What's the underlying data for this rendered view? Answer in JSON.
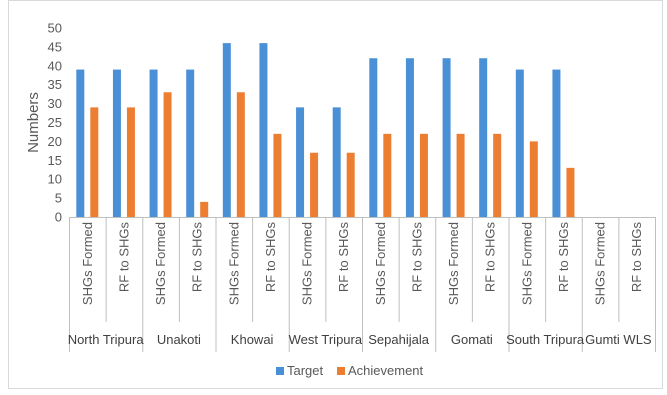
{
  "chart_data": {
    "type": "bar",
    "ylabel": "Numbers",
    "xlabel": "",
    "ylim": [
      0,
      50
    ],
    "ytick_step": 5,
    "grid": false,
    "legend_position": "bottom",
    "groups": [
      "North Tripura",
      "Unakoti",
      "Khowai",
      "West Tripura",
      "Sepahijala",
      "Gomati",
      "South Tripura",
      "Gumti WLS"
    ],
    "subcategories": [
      "SHGs Formed",
      "RF to SHGs"
    ],
    "series": [
      {
        "name": "Target",
        "color": "#4a90d6",
        "values": [
          39,
          39,
          39,
          39,
          46,
          46,
          29,
          29,
          42,
          42,
          42,
          42,
          39,
          39,
          0,
          0
        ]
      },
      {
        "name": "Achievement",
        "color": "#ed7d31",
        "values": [
          29,
          29,
          33,
          4,
          33,
          22,
          17,
          17,
          22,
          22,
          22,
          22,
          20,
          13,
          0,
          0
        ]
      }
    ]
  }
}
